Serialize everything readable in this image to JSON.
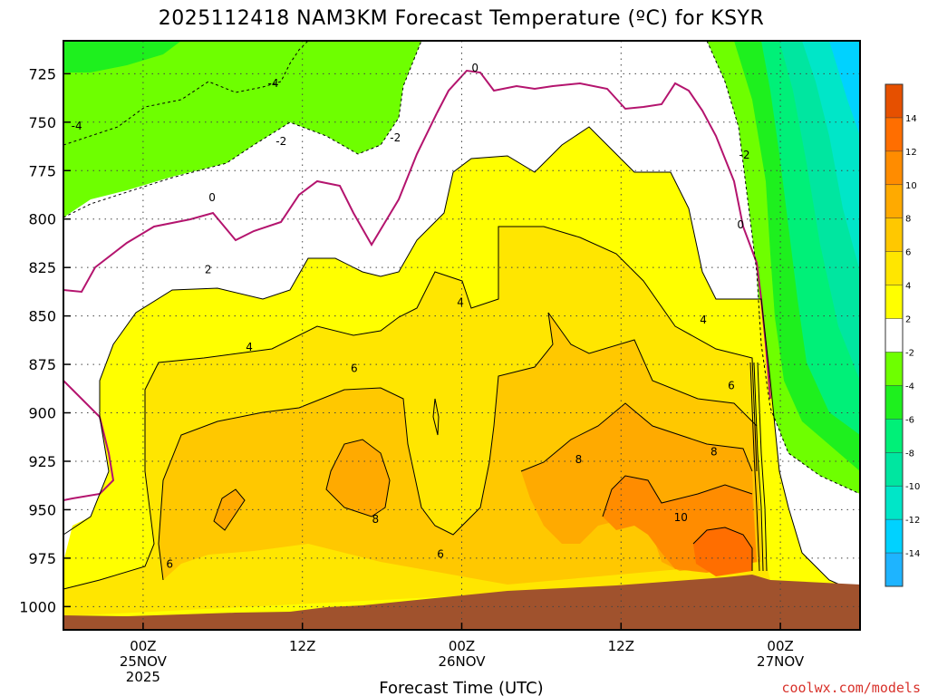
{
  "title": "2025112418 NAM3KM Forecast Temperature (ºC) for KSYR",
  "credit": "coolwx.com/models",
  "chart_data": {
    "type": "heatmap",
    "title": "2025112418 NAM3KM Forecast Temperature (ºC) for KSYR",
    "xlabel": "Forecast Time (UTC)",
    "ylabel": "",
    "x_ticks": [
      {
        "hour": 6,
        "line1": "00Z",
        "line2": "25NOV",
        "line3": "2025"
      },
      {
        "hour": 18,
        "line1": "12Z",
        "line2": "",
        "line3": ""
      },
      {
        "hour": 30,
        "line1": "00Z",
        "line2": "26NOV",
        "line3": ""
      },
      {
        "hour": 42,
        "line1": "12Z",
        "line2": "",
        "line3": ""
      },
      {
        "hour": 54,
        "line1": "00Z",
        "line2": "27NOV",
        "line3": ""
      }
    ],
    "xlim": [
      0,
      60
    ],
    "y_ticks": [
      725,
      750,
      775,
      800,
      825,
      850,
      875,
      900,
      925,
      950,
      975,
      1000
    ],
    "ylim": [
      1012,
      708
    ],
    "colorbar": {
      "colors": [
        "#1eb4ff",
        "#00d2ff",
        "#00e6c8",
        "#00e6a0",
        "#00f078",
        "#1ef01e",
        "#6eff00",
        "#ffffff",
        "#ffff00",
        "#ffe600",
        "#ffc800",
        "#ffaa00",
        "#ff8c00",
        "#ff6e00",
        "#e65000"
      ],
      "tick_labels": [
        "-14",
        "-12",
        "-10",
        "-8",
        "-6",
        "-4",
        "-2",
        "2",
        "4",
        "6",
        "8",
        "10",
        "12",
        "14"
      ]
    },
    "levels": [
      -14,
      -12,
      -10,
      -8,
      -6,
      -4,
      -2,
      0,
      2,
      4,
      6,
      8,
      10,
      12,
      14
    ],
    "contour_labels": [
      {
        "text": "0",
        "hour": 31.0,
        "p": 722
      },
      {
        "text": "0",
        "hour": 11.2,
        "p": 789
      },
      {
        "text": "0",
        "hour": 51.0,
        "p": 803
      },
      {
        "text": "-2",
        "hour": 16.4,
        "p": 760
      },
      {
        "text": "-2",
        "hour": 25.0,
        "p": 758
      },
      {
        "text": "-2",
        "hour": 51.3,
        "p": 767
      },
      {
        "text": "-4",
        "hour": 1.0,
        "p": 752
      },
      {
        "text": "-4",
        "hour": 15.8,
        "p": 730
      },
      {
        "text": "2",
        "hour": 10.9,
        "p": 826
      },
      {
        "text": "4",
        "hour": 14.0,
        "p": 866
      },
      {
        "text": "4",
        "hour": 29.9,
        "p": 843
      },
      {
        "text": "4",
        "hour": 48.2,
        "p": 852
      },
      {
        "text": "6",
        "hour": 21.9,
        "p": 877
      },
      {
        "text": "6",
        "hour": 50.3,
        "p": 886
      },
      {
        "text": "6",
        "hour": 8.0,
        "p": 978
      },
      {
        "text": "6",
        "hour": 28.4,
        "p": 973
      },
      {
        "text": "8",
        "hour": 23.5,
        "p": 955
      },
      {
        "text": "8",
        "hour": 38.8,
        "p": 924
      },
      {
        "text": "8",
        "hour": 49.0,
        "p": 920
      },
      {
        "text": "10",
        "hour": 46.5,
        "p": 954
      }
    ],
    "terrain_color": "#a0522d"
  }
}
